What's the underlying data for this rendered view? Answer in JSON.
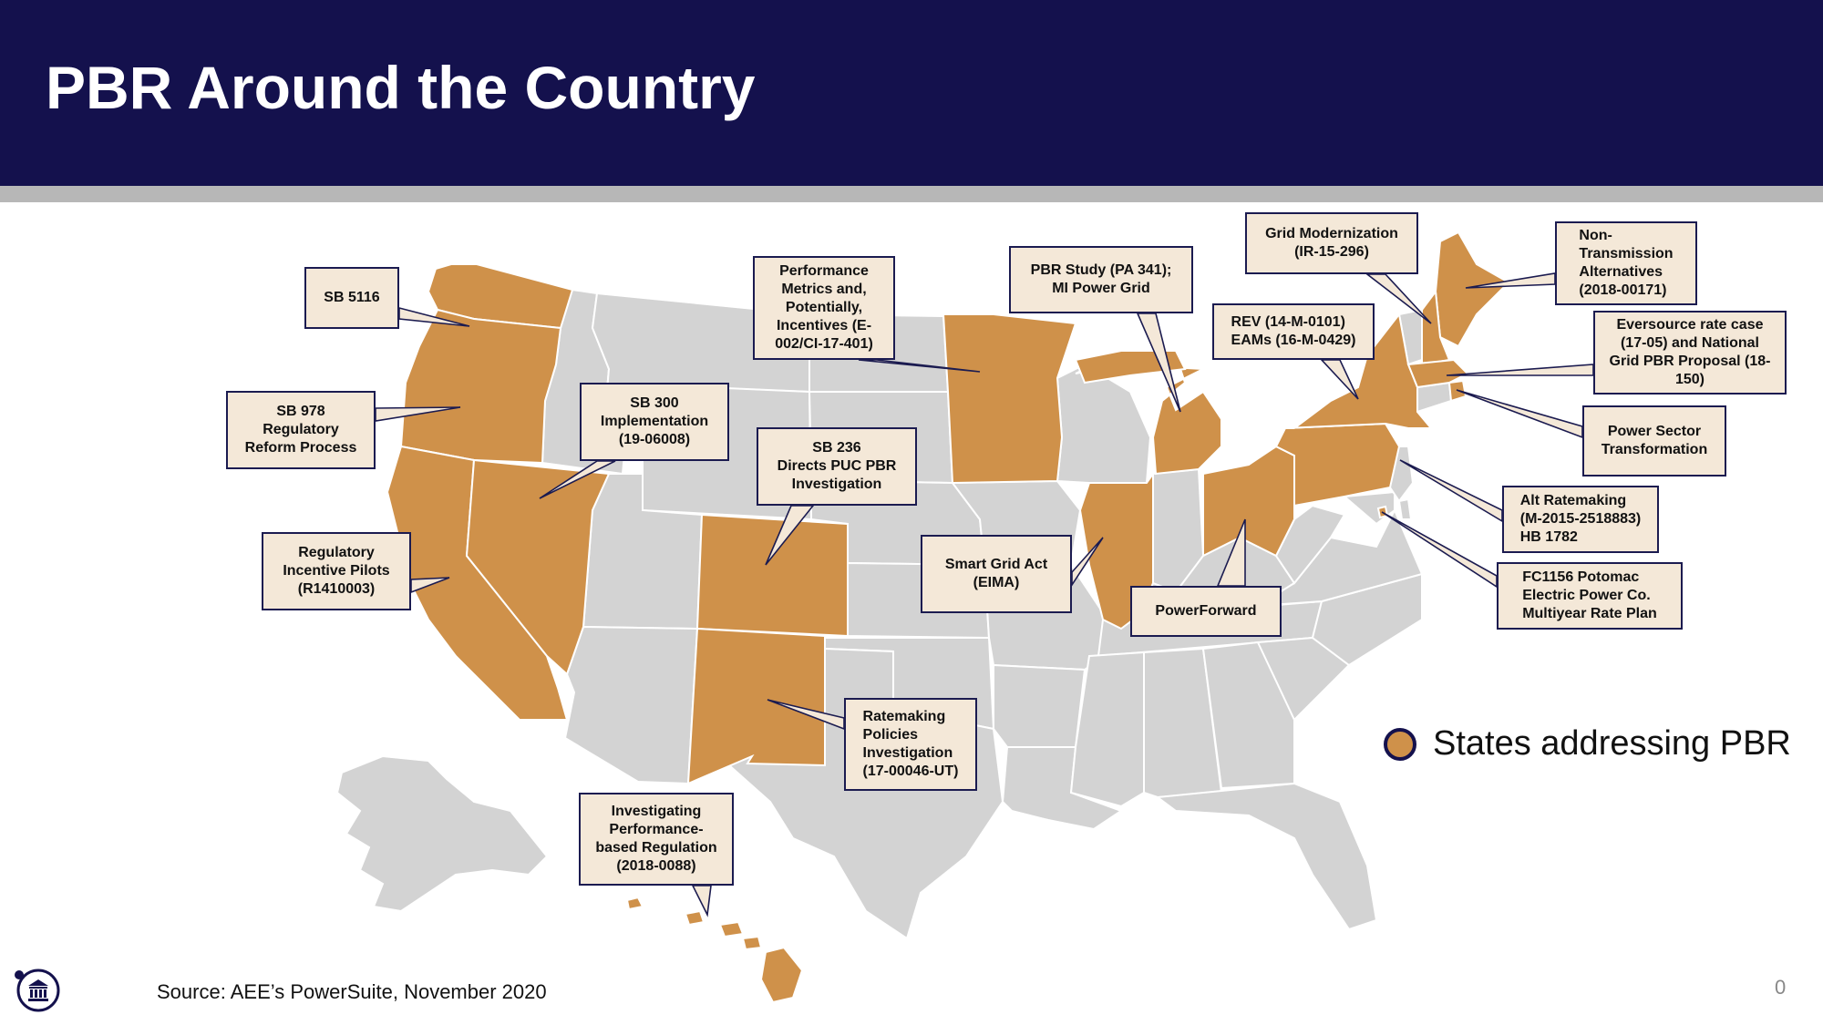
{
  "slide": {
    "title": "PBR Around the Country",
    "source": "Source: AEE’s PowerSuite, November 2020",
    "page_number": "0"
  },
  "legend": {
    "label": "States addressing PBR",
    "color": "#cf914a"
  },
  "colors": {
    "highlight": "#cf914a",
    "other_states": "#d3d3d3",
    "header": "#14114d",
    "callout_fill": "#f4e8d8",
    "callout_border": "#1b1b50"
  },
  "callouts": [
    {
      "id": "wa",
      "text": "SB 5116"
    },
    {
      "id": "or",
      "text": "SB 978\nRegulatory\nReform Process"
    },
    {
      "id": "ca",
      "text": "Regulatory\nIncentive Pilots\n(R1410003)"
    },
    {
      "id": "nv",
      "text": "SB 300\nImplementation\n(19-06008)"
    },
    {
      "id": "mn",
      "text": "Performance\nMetrics and,\nPotentially,\nIncentives (E-\n002/CI-17-401)"
    },
    {
      "id": "co",
      "text": "SB 236\nDirects PUC PBR\nInvestigation"
    },
    {
      "id": "mi",
      "text": "PBR Study (PA 341);\nMI Power Grid"
    },
    {
      "id": "nm",
      "text": "Ratemaking\nPolicies\nInvestigation\n(17-00046-UT)"
    },
    {
      "id": "hi",
      "text": "Investigating\nPerformance-\nbased Regulation\n(2018-0088)"
    },
    {
      "id": "il",
      "text": "Smart Grid Act\n(EIMA)"
    },
    {
      "id": "oh",
      "text": "PowerForward"
    },
    {
      "id": "ny",
      "text": "REV (14-M-0101)\nEAMs (16-M-0429)"
    },
    {
      "id": "nh",
      "text": "Grid Modernization\n(IR-15-296)"
    },
    {
      "id": "me",
      "text": "Non-\nTransmission\nAlternatives\n(2018-00171)"
    },
    {
      "id": "ma",
      "text": "Eversource rate case\n(17-05) and National\nGrid PBR Proposal (18-\n150)"
    },
    {
      "id": "ri",
      "text": "Power Sector\nTransformation"
    },
    {
      "id": "pa",
      "text": "Alt Ratemaking\n(M-2015-2518883)\nHB 1782"
    },
    {
      "id": "dc",
      "text": "FC1156 Potomac\nElectric Power Co.\nMultiyear Rate Plan"
    }
  ]
}
